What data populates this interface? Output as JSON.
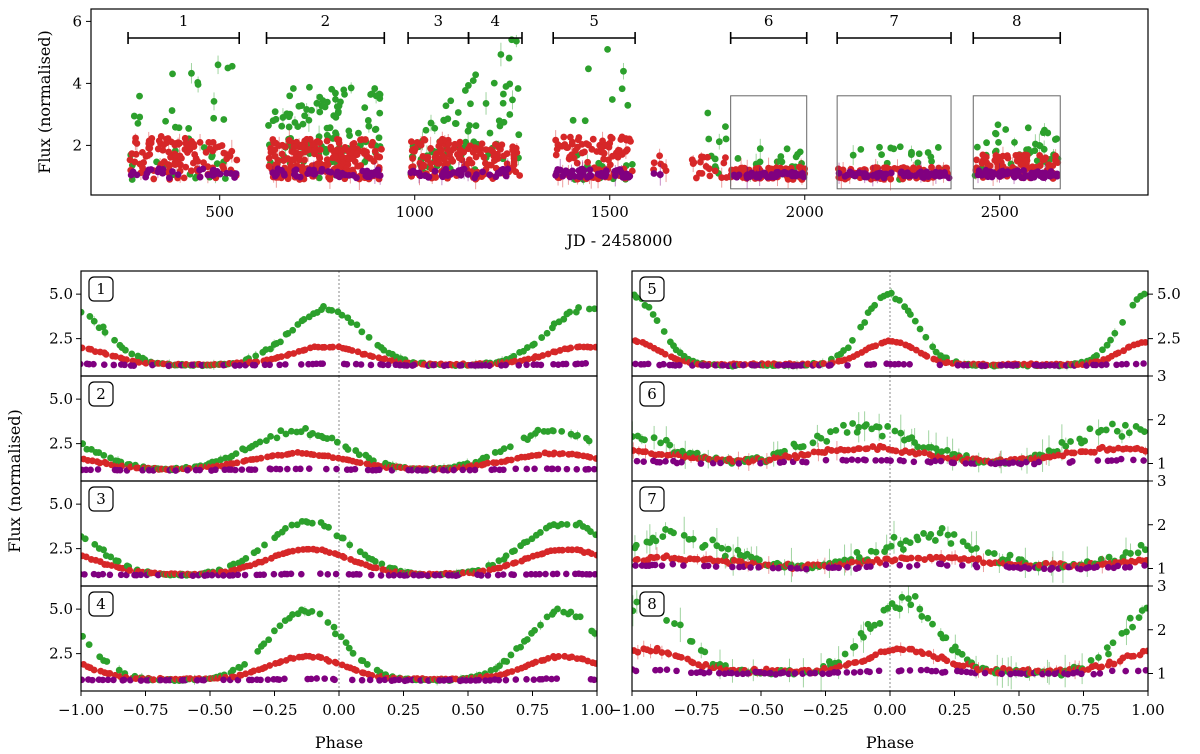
{
  "colors": {
    "green": "#2ca02c",
    "red": "#d62728",
    "purple": "#800080",
    "frame": "#000000",
    "box": "#666666",
    "zero_line": "#888888"
  },
  "chart_data": [
    {
      "id": "top",
      "type": "scatter",
      "xlabel": "JD - 2458000",
      "ylabel": "Flux (normalised)",
      "xlim": [
        170,
        2880
      ],
      "ylim": [
        0.4,
        6.4
      ],
      "xticks": [
        500,
        1000,
        1500,
        2000,
        2500
      ],
      "yticks": [
        2,
        4,
        6
      ],
      "segments": [
        {
          "label": "1",
          "x0": 265,
          "x1": 550
        },
        {
          "label": "2",
          "x0": 620,
          "x1": 922
        },
        {
          "label": "3",
          "x0": 983,
          "x1": 1138
        },
        {
          "label": "4",
          "x0": 1138,
          "x1": 1275
        },
        {
          "label": "5",
          "x0": 1355,
          "x1": 1565
        },
        {
          "label": "6",
          "x0": 1810,
          "x1": 2005
        },
        {
          "label": "7",
          "x0": 2083,
          "x1": 2375
        },
        {
          "label": "8",
          "x0": 2432,
          "x1": 2655
        }
      ],
      "boxes": [
        {
          "label": "6",
          "x0": 1810,
          "x1": 2005,
          "y0": 0.6,
          "y1": 3.6
        },
        {
          "label": "7",
          "x0": 2083,
          "x1": 2375,
          "y0": 0.6,
          "y1": 3.6
        },
        {
          "label": "8",
          "x0": 2432,
          "x1": 2655,
          "y0": 0.6,
          "y1": 3.6
        }
      ],
      "series": [
        {
          "name": "green",
          "description": "high-amplitude band (outbursts up to ~5.2)"
        },
        {
          "name": "red",
          "description": "intermediate band (~1-2.3)"
        },
        {
          "name": "purple",
          "description": "low band (~1.0-1.2)"
        }
      ]
    },
    {
      "id": "phase-left",
      "type": "scatter",
      "xlabel": "Phase",
      "ylabel": "Flux (normalised)",
      "xlim": [
        -1.0,
        1.0
      ],
      "xticks": [
        -1.0,
        -0.75,
        -0.5,
        -0.25,
        0.0,
        0.25,
        0.5,
        0.75,
        1.0
      ],
      "xticklabels": [
        "−1.00",
        "−0.75",
        "−0.50",
        "−0.25",
        "0.00",
        "0.25",
        "0.50",
        "0.75",
        "1.00"
      ],
      "panels": [
        {
          "label": "1",
          "ylim": [
            0.4,
            6.3
          ],
          "yticks": [
            2.5,
            5.0
          ],
          "yticklabels": [
            "2.5",
            "5.0"
          ],
          "peak_phase": -0.05,
          "green_peak": 4.2,
          "red_peak": 2.0,
          "base": 1.0,
          "width": 0.14
        },
        {
          "label": "2",
          "ylim": [
            0.4,
            6.3
          ],
          "yticks": [
            2.5,
            5.0
          ],
          "yticklabels": [
            "2.5",
            "5.0"
          ],
          "peak_phase": -0.16,
          "green_peak": 3.2,
          "red_peak": 1.9,
          "base": 1.0,
          "width": 0.18
        },
        {
          "label": "3",
          "ylim": [
            0.4,
            6.3
          ],
          "yticks": [
            2.5,
            5.0
          ],
          "yticklabels": [
            "2.5",
            "5.0"
          ],
          "peak_phase": -0.12,
          "green_peak": 4.0,
          "red_peak": 2.4,
          "base": 1.0,
          "width": 0.16
        },
        {
          "label": "4",
          "ylim": [
            0.4,
            6.3
          ],
          "yticks": [
            2.5,
            5.0
          ],
          "yticklabels": [
            "2.5",
            "5.0"
          ],
          "peak_phase": -0.13,
          "green_peak": 4.9,
          "red_peak": 2.3,
          "base": 1.0,
          "width": 0.14
        }
      ]
    },
    {
      "id": "phase-right",
      "type": "scatter",
      "xlabel": "Phase",
      "xlim": [
        -1.0,
        1.0
      ],
      "xticks": [
        -1.0,
        -0.75,
        -0.5,
        -0.25,
        0.0,
        0.25,
        0.5,
        0.75,
        1.0
      ],
      "xticklabels": [
        "−1.00",
        "−0.75",
        "−0.50",
        "−0.25",
        "0.00",
        "0.25",
        "0.50",
        "0.75",
        "1.00"
      ],
      "panels": [
        {
          "label": "5",
          "ylim": [
            0.4,
            6.3
          ],
          "yticks": [
            2.5,
            5.0
          ],
          "yticklabels": [
            "2.5",
            "5.0"
          ],
          "peak_phase": 0.0,
          "green_peak": 5.0,
          "red_peak": 2.3,
          "base": 1.0,
          "width": 0.1
        },
        {
          "label": "6",
          "ylim": [
            0.6,
            3.0
          ],
          "yticks": [
            1,
            2,
            3
          ],
          "yticklabels": [
            "1",
            "2",
            "3"
          ],
          "peak_phase": -0.1,
          "green_peak": 1.8,
          "red_peak": 1.3,
          "base": 1.0,
          "width": 0.2
        },
        {
          "label": "7",
          "ylim": [
            0.6,
            3.0
          ],
          "yticks": [
            1,
            2,
            3
          ],
          "yticklabels": [
            "1",
            "2",
            "3"
          ],
          "peak_phase": 0.15,
          "green_peak": 1.7,
          "red_peak": 1.2,
          "base": 1.0,
          "width": 0.2
        },
        {
          "label": "8",
          "ylim": [
            0.6,
            3.0
          ],
          "yticks": [
            1,
            2,
            3
          ],
          "yticklabels": [
            "1",
            "2",
            "3"
          ],
          "peak_phase": 0.05,
          "green_peak": 2.6,
          "red_peak": 1.5,
          "base": 1.0,
          "width": 0.14
        }
      ]
    }
  ]
}
